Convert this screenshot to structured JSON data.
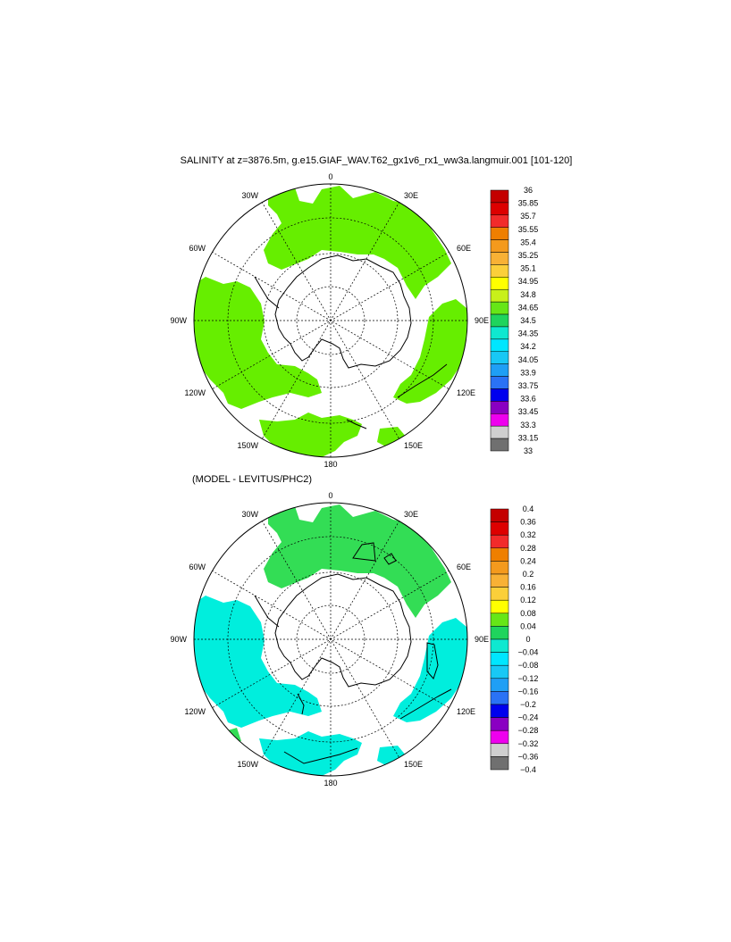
{
  "panels": [
    {
      "title": "SALINITY at z=3876.5m, g.e15.GIAF_WAV.T62_gx1v6_rx1_ww3a.langmuir.001 [101-120]",
      "lon_labels": [
        "0",
        "30E",
        "60E",
        "90E",
        "120E",
        "150E",
        "180",
        "150W",
        "120W",
        "90W",
        "60W",
        "30W"
      ],
      "colorbar": {
        "labels": [
          "36",
          "35.85",
          "35.7",
          "35.55",
          "35.4",
          "35.25",
          "35.1",
          "34.95",
          "34.8",
          "34.65",
          "34.5",
          "34.35",
          "34.2",
          "34.05",
          "33.9",
          "33.75",
          "33.6",
          "33.45",
          "33.3",
          "33.15",
          "33"
        ],
        "colors": [
          "#c40000",
          "#dd0000",
          "#f22b2b",
          "#ef7f00",
          "#f49a1d",
          "#f8b135",
          "#fbcf3a",
          "#ffff00",
          "#c8f01a",
          "#66e617",
          "#1fd45d",
          "#0fe8d0",
          "#00e6ff",
          "#18c8f5",
          "#1f9ff5",
          "#2a72f5",
          "#0000ee",
          "#8a00c2",
          "#ee00ee",
          "#cfcfcf",
          "#707070"
        ]
      }
    },
    {
      "title": "(MODEL - LEVITUS/PHC2)",
      "lon_labels": [
        "0",
        "30E",
        "60E",
        "90E",
        "120E",
        "150E",
        "180",
        "150W",
        "120W",
        "90W",
        "60W",
        "30W"
      ],
      "colorbar": {
        "labels": [
          "0.4",
          "0.36",
          "0.32",
          "0.28",
          "0.24",
          "0.2",
          "0.16",
          "0.12",
          "0.08",
          "0.04",
          "0",
          "−0.04",
          "−0.08",
          "−0.12",
          "−0.16",
          "−0.2",
          "−0.24",
          "−0.28",
          "−0.32",
          "−0.36",
          "−0.4"
        ],
        "colors": [
          "#c40000",
          "#dd0000",
          "#f22b2b",
          "#ef7f00",
          "#f49a1d",
          "#f8b135",
          "#fbcf3a",
          "#ffff00",
          "#66e617",
          "#1fd45d",
          "#0fe8d0",
          "#00e6ff",
          "#18c8f5",
          "#1f9ff5",
          "#2a72f5",
          "#0000ee",
          "#8a00c2",
          "#ee00ee",
          "#cfcfcf",
          "#707070"
        ]
      }
    }
  ],
  "fill_colors": {
    "green": "#66ee00",
    "cyan": "#00eedd",
    "dark_green": "#33dd55"
  }
}
